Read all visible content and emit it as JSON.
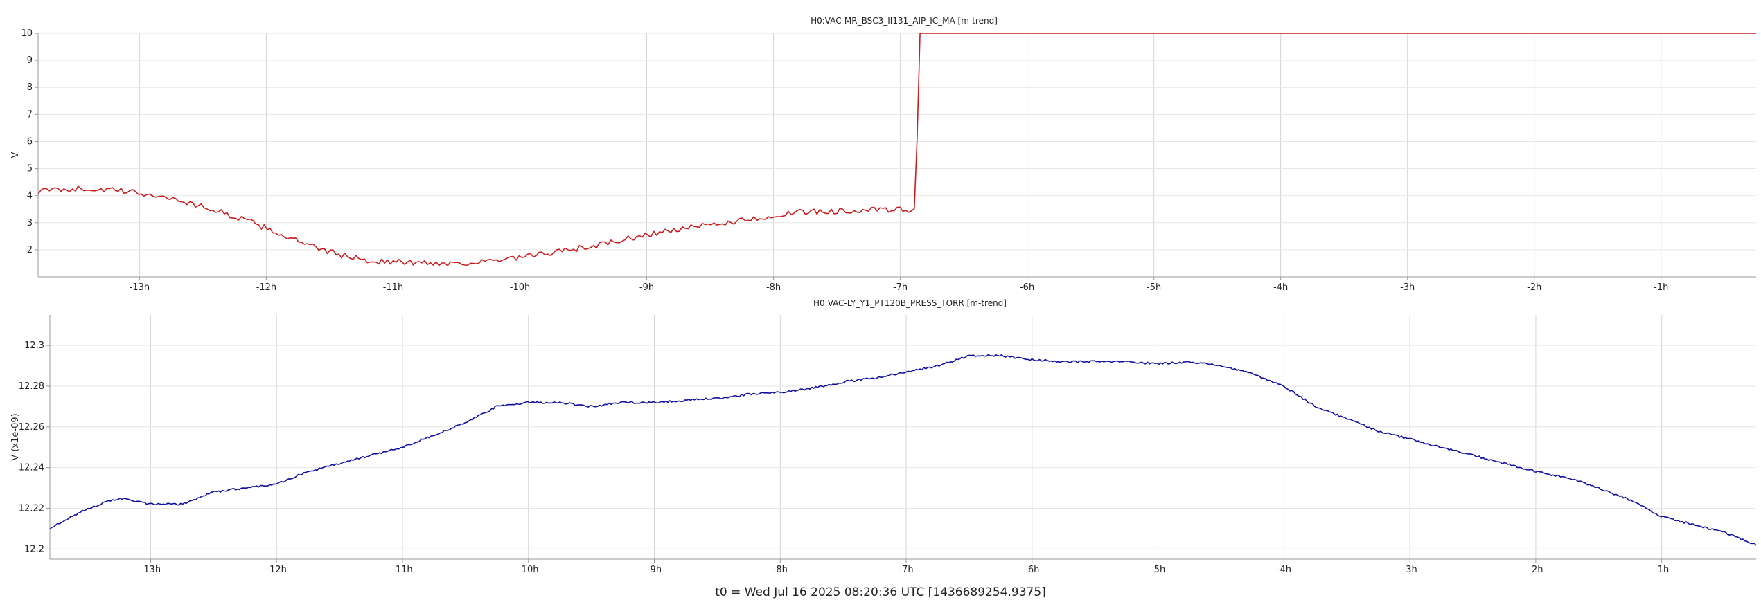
{
  "chart_data": [
    {
      "type": "line",
      "title": "H0:VAC-MR_BSC3_II131_AIP_IC_MA [m-trend]",
      "ylabel": "V",
      "xlabel": "",
      "xlim": [
        -13.8,
        -0.25
      ],
      "ylim": [
        1.0,
        10.0
      ],
      "x_ticks": [
        "-13h",
        "-12h",
        "-11h",
        "-10h",
        "-9h",
        "-8h",
        "-7h",
        "-6h",
        "-5h",
        "-4h",
        "-3h",
        "-2h",
        "-1h"
      ],
      "y_ticks": [
        "2",
        "3",
        "4",
        "5",
        "6",
        "7",
        "8",
        "9",
        "10"
      ],
      "grid": true,
      "color": "#c81e1e",
      "series": [
        {
          "x": [
            -13.8,
            -13.6,
            -13.4,
            -13.2,
            -13.0,
            -12.8,
            -12.6,
            -12.4,
            -12.2,
            -12.0,
            -11.8,
            -11.6,
            -11.4,
            -11.2,
            -11.0,
            -10.8,
            -10.6,
            -10.4,
            -10.2,
            -10.0,
            -9.8,
            -9.6,
            -9.4,
            -9.2,
            -9.0,
            -8.8,
            -8.6,
            -8.4,
            -8.2,
            -8.0,
            -7.8,
            -7.6,
            -7.4,
            -7.2,
            -7.0,
            -6.9,
            -6.88,
            -6.87,
            -6.86,
            -6.85,
            -6.8,
            -6.0,
            -5.0,
            -4.0,
            -3.0,
            -2.0,
            -1.0,
            -0.25
          ],
          "y": [
            4.15,
            4.25,
            4.25,
            4.2,
            4.1,
            3.95,
            3.72,
            3.45,
            3.15,
            2.8,
            2.4,
            2.05,
            1.8,
            1.6,
            1.55,
            1.52,
            1.5,
            1.52,
            1.58,
            1.7,
            1.85,
            2.0,
            2.15,
            2.35,
            2.55,
            2.72,
            2.85,
            2.98,
            3.12,
            3.25,
            3.38,
            3.42,
            3.45,
            3.47,
            3.47,
            3.45,
            3.5,
            5.0,
            9.0,
            10.0,
            10.0,
            10.0,
            10.0,
            10.0,
            10.0,
            10.0,
            10.0,
            10.0
          ]
        }
      ]
    },
    {
      "type": "line",
      "title": "H0:VAC-LY_Y1_PT120B_PRESS_TORR [m-trend]",
      "ylabel": "V (x1e-09)",
      "xlabel": "",
      "xlim": [
        -13.8,
        -0.25
      ],
      "ylim": [
        12.195,
        12.315
      ],
      "x_ticks": [
        "-13h",
        "-12h",
        "-11h",
        "-10h",
        "-9h",
        "-8h",
        "-7h",
        "-6h",
        "-5h",
        "-4h",
        "-3h",
        "-2h",
        "-1h"
      ],
      "y_ticks": [
        "12.2",
        "12.22",
        "12.24",
        "12.26",
        "12.28",
        "12.3"
      ],
      "grid": true,
      "color": "#1010a0",
      "series": [
        {
          "x": [
            -13.8,
            -13.5,
            -13.25,
            -13.0,
            -12.75,
            -12.5,
            -12.25,
            -12.0,
            -11.75,
            -11.5,
            -11.25,
            -11.0,
            -10.75,
            -10.5,
            -10.25,
            -10.0,
            -9.75,
            -9.5,
            -9.25,
            -9.0,
            -8.75,
            -8.5,
            -8.25,
            -8.0,
            -7.75,
            -7.5,
            -7.25,
            -7.0,
            -6.75,
            -6.5,
            -6.25,
            -6.0,
            -5.75,
            -5.5,
            -5.25,
            -5.0,
            -4.75,
            -4.5,
            -4.25,
            -4.0,
            -3.75,
            -3.5,
            -3.25,
            -3.0,
            -2.75,
            -2.5,
            -2.25,
            -2.0,
            -1.75,
            -1.5,
            -1.25,
            -1.0,
            -0.75,
            -0.5,
            -0.25
          ],
          "y": [
            12.21,
            12.22,
            12.225,
            12.222,
            12.222,
            12.228,
            12.23,
            12.232,
            12.238,
            12.242,
            12.246,
            12.25,
            12.256,
            12.262,
            12.27,
            12.272,
            12.272,
            12.27,
            12.272,
            12.272,
            12.273,
            12.274,
            12.276,
            12.277,
            12.279,
            12.282,
            12.284,
            12.287,
            12.29,
            12.295,
            12.295,
            12.293,
            12.292,
            12.292,
            12.292,
            12.291,
            12.292,
            12.29,
            12.286,
            12.28,
            12.27,
            12.264,
            12.258,
            12.254,
            12.25,
            12.246,
            12.242,
            12.238,
            12.235,
            12.23,
            12.224,
            12.216,
            12.212,
            12.208,
            12.202
          ]
        }
      ]
    }
  ],
  "footer": "t0 = Wed Jul 16 2025 08:20:36 UTC [1436689254.9375]"
}
